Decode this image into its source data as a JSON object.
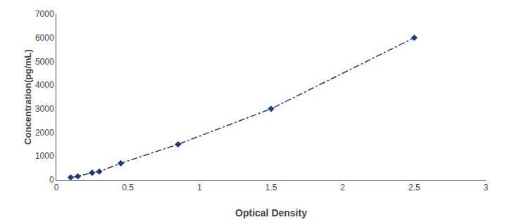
{
  "chart_data": {
    "type": "line",
    "xlabel": "Optical Density",
    "ylabel": "Concentration(pg/mL)",
    "x": [
      0.1,
      0.15,
      0.25,
      0.3,
      0.45,
      0.85,
      1.5,
      2.5
    ],
    "values": [
      100,
      150,
      300,
      350,
      700,
      1500,
      3000,
      6000
    ],
    "color": "#1f3a7a",
    "marker": "diamond",
    "line_style": "dashdot",
    "xlim": [
      0,
      3
    ],
    "ylim": [
      0,
      7000
    ],
    "xticks": [
      0,
      0.5,
      1,
      1.5,
      2,
      2.5,
      3
    ],
    "yticks": [
      0,
      1000,
      2000,
      3000,
      4000,
      5000,
      6000,
      7000
    ],
    "grid": false
  }
}
